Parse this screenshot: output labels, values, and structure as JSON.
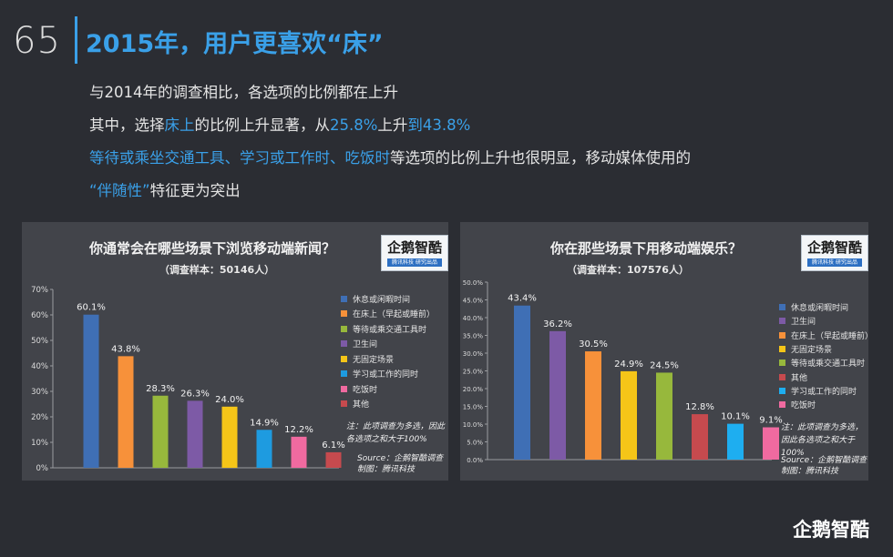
{
  "page": {
    "number": "65",
    "title": "2015年，用户更喜欢“床”",
    "line1": "与2014年的调查相比，各选项的比例都在上升",
    "line2_pre": "其中，选择",
    "line2_hl1": "床上",
    "line2_mid1": "的比例上升显著，从",
    "line2_hl2": "25.8%",
    "line2_mid2": "上升",
    "line2_hl3": "到43.8%",
    "line3_hl": "等待或乘坐交通工具、学习或工作时、吃饭时",
    "line3_rest": "等选项的比例上升也很明显，移动媒体使用的",
    "line4_hl": "“伴随性”",
    "line4_rest": "特征更为突出",
    "brand": "企鹅智酷",
    "accent_color": "#3aa0e8"
  },
  "logo": {
    "name": "企鹅智酷",
    "tagline": "腾讯科技 研究出品"
  },
  "chart_data": [
    {
      "type": "bar",
      "title": "你通常会在哪些场景下浏览移动端新闻？",
      "subtitle": "（调查样本：50146人）",
      "categories": [
        "休息或闲暇时间",
        "在床上（早起或睡前）",
        "等待或乘交通工具时",
        "卫生间",
        "无固定场景",
        "学习或工作的同时",
        "吃饭时",
        "其他"
      ],
      "values": [
        60.1,
        43.8,
        28.3,
        26.3,
        24.0,
        14.9,
        12.2,
        6.1
      ],
      "value_labels": [
        "60.1%",
        "43.8%",
        "28.3%",
        "26.3%",
        "24.0%",
        "14.9%",
        "12.2%",
        "6.1%"
      ],
      "colors": [
        "#3f6fb5",
        "#f7913a",
        "#97b83c",
        "#7d5aa6",
        "#f5c518",
        "#1e9be0",
        "#f06aa0",
        "#c64a4e"
      ],
      "ylim": [
        0,
        70
      ],
      "yticks": [
        "0%",
        "10%",
        "20%",
        "30%",
        "40%",
        "50%",
        "60%",
        "70%"
      ],
      "grid": false,
      "legend": "right",
      "note": "注：此项调查为多选，因此各选项之和大于100%",
      "source": "Source：企鹅智酷调查",
      "credit": "制图：腾讯科技"
    },
    {
      "type": "bar",
      "title": "你在那些场景下用移动端娱乐？",
      "subtitle": "（调查样本：107576人）",
      "categories": [
        "休息或闲暇时间",
        "卫生间",
        "在床上（早起或睡前）",
        "无固定场景",
        "等待或乘交通工具时",
        "其他",
        "学习或工作的同时",
        "吃饭时"
      ],
      "values": [
        43.4,
        36.2,
        30.5,
        24.9,
        24.5,
        12.8,
        10.1,
        9.1
      ],
      "value_labels": [
        "43.4%",
        "36.2%",
        "30.5%",
        "24.9%",
        "24.5%",
        "12.8%",
        "10.1%",
        "9.1%"
      ],
      "colors": [
        "#3f6fb5",
        "#7d5aa6",
        "#f7913a",
        "#f5c518",
        "#97b83c",
        "#c64a4e",
        "#1eaef0",
        "#f06aa0"
      ],
      "ylim": [
        0,
        50
      ],
      "yticks": [
        "0.0%",
        "5.0%",
        "10.0%",
        "15.0%",
        "20.0%",
        "25.0%",
        "30.0%",
        "35.0%",
        "40.0%",
        "45.0%",
        "50.0%"
      ],
      "grid": false,
      "legend": "right",
      "note": "注：此项调查为多选，因此各选项之和大于100%",
      "source": "Source：企鹅智酷调查",
      "credit": "制图：腾讯科技"
    }
  ]
}
